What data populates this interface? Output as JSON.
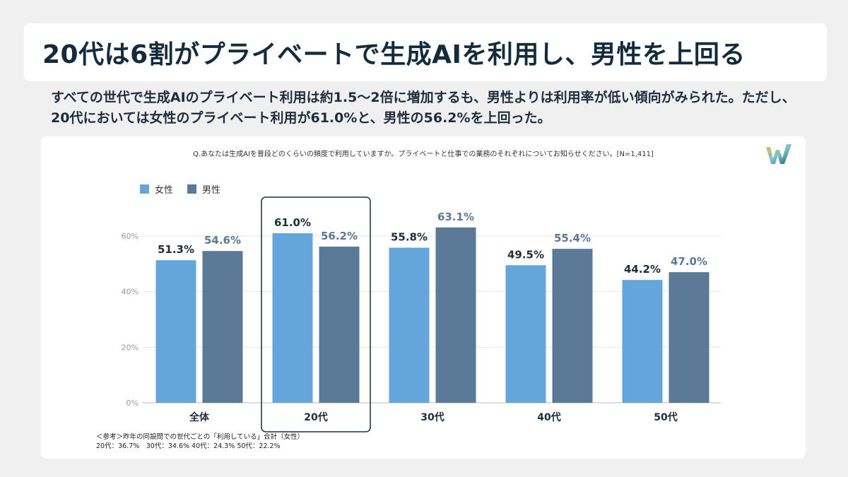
{
  "title": "20代は6割がプライベートで生成AIを利用し、男性を上回る",
  "subtitle": "すべての世代で生成AIのプライベート利用は約1.5～2倍に増加するも、男性よりは利用率が低い傾向がみられた。ただし、20代においては女性のプライベート利用が61.0%と、男性の56.2%を上回った。",
  "question": "Q.あなたは生成AIを普段どのくらいの頻度で利用していますか。プライベートと仕事での業務のそれぞれについてお知らせください。[N=1,411]",
  "logo": {
    "icon": "w-logo-icon"
  },
  "note": {
    "line1": "＜参考＞昨年の同設問での世代ごとの「利用している」合計（女性）",
    "line2": "20代：36.7%　30代：34.6%  40代：24.3% 50代：22.2%"
  },
  "chart_data": {
    "type": "bar",
    "categories": [
      "全体",
      "20代",
      "30代",
      "40代",
      "50代"
    ],
    "series": [
      {
        "name": "女性",
        "color": "#64a5dc",
        "values": [
          51.3,
          61.0,
          55.8,
          49.5,
          44.2
        ],
        "labels": [
          "51.3%",
          "61.0%",
          "55.8%",
          "49.5%",
          "44.2%"
        ],
        "label_color": "#1f2d3d"
      },
      {
        "name": "男性",
        "color": "#5a7a98",
        "values": [
          54.6,
          56.2,
          63.1,
          55.4,
          47.0
        ],
        "labels": [
          "54.6%",
          "56.2%",
          "63.1%",
          "55.4%",
          "47.0%"
        ],
        "label_color": "#5a7a98"
      }
    ],
    "yticks": [
      0,
      20,
      40,
      60
    ],
    "ytick_labels": [
      "0%",
      "20%",
      "40%",
      "60%"
    ],
    "ylim": [
      0,
      60
    ],
    "grid": true,
    "legend": "top-left",
    "highlight_category": "20代"
  }
}
